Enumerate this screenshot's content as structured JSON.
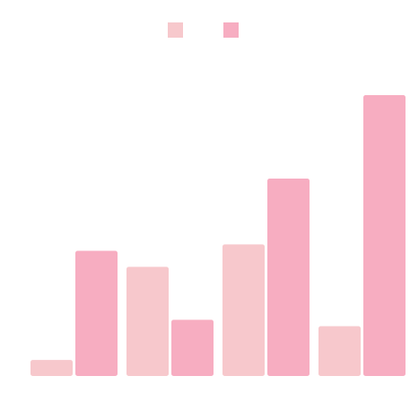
{
  "chart_data": {
    "type": "bar",
    "title": "",
    "xlabel": "",
    "ylabel": "",
    "categories": [
      "",
      "",
      "",
      ""
    ],
    "series": [
      {
        "color": "#f7c8cc",
        "values": [
          1.0,
          6.8,
          8.2,
          3.1
        ]
      },
      {
        "color": "#f7adc1",
        "values": [
          7.8,
          3.5,
          12.3,
          17.5
        ]
      }
    ],
    "ylim": [
      0,
      17.5
    ],
    "grid": false,
    "axes_visible": false,
    "legend": {
      "placement": "top-center",
      "entries": [
        "",
        ""
      ]
    }
  }
}
